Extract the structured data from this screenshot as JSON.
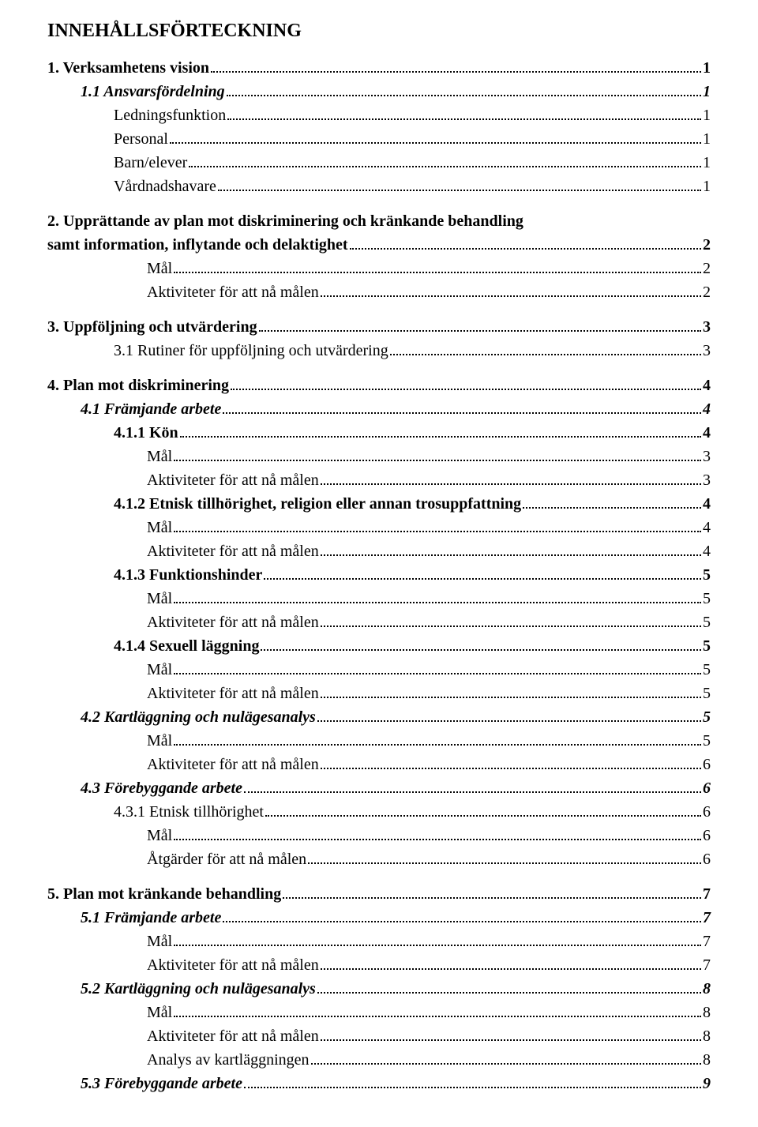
{
  "title": "INNEHÅLLSFÖRTECKNING",
  "entries": [
    {
      "label": "1. Verksamhetens vision",
      "page": "1",
      "cls": "l1 sp-before"
    },
    {
      "label": "1.1 Ansvarsfördelning",
      "page": "1",
      "cls": "l2"
    },
    {
      "label": "Ledningsfunktion",
      "page": "1",
      "cls": "l3"
    },
    {
      "label": "Personal",
      "page": "1",
      "cls": "l3"
    },
    {
      "label": "Barn/elever",
      "page": "1",
      "cls": "l3"
    },
    {
      "label": "Vårdnadshavare",
      "page": "1",
      "cls": "l3"
    },
    {
      "label": "2. Upprättande av plan mot diskriminering och kränkande behandling",
      "page": "",
      "cls": "l1 sp-before",
      "nobreak_next": true
    },
    {
      "label": "samt information, inflytande och delaktighet",
      "page": "2",
      "cls": "l1",
      "continuation": true
    },
    {
      "label": "Mål",
      "page": "2",
      "cls": "l4"
    },
    {
      "label": "Aktiviteter för att nå målen",
      "page": "2",
      "cls": "l4"
    },
    {
      "label": "3. Uppföljning och utvärdering",
      "page": "3",
      "cls": "l1 sp-before"
    },
    {
      "label": "3.1 Rutiner för uppföljning och utvärdering",
      "page": "3",
      "cls": "l3"
    },
    {
      "label": "4. Plan mot diskriminering",
      "page": "4",
      "cls": "l1 sp-before"
    },
    {
      "label": "4.1 Främjande arbete",
      "page": "4",
      "cls": "l2"
    },
    {
      "label": "4.1.1 Kön",
      "page": "4",
      "cls": "l3b"
    },
    {
      "label": "Mål",
      "page": "3",
      "cls": "l4"
    },
    {
      "label": "Aktiviteter för att nå målen",
      "page": "3",
      "cls": "l4"
    },
    {
      "label": "4.1.2 Etnisk tillhörighet, religion eller annan trosuppfattning",
      "page": "4",
      "cls": "l3b"
    },
    {
      "label": "Mål",
      "page": "4",
      "cls": "l4"
    },
    {
      "label": "Aktiviteter för att nå målen",
      "page": "4",
      "cls": "l4"
    },
    {
      "label": "4.1.3 Funktionshinder",
      "page": "5",
      "cls": "l3b"
    },
    {
      "label": "Mål",
      "page": "5",
      "cls": "l4"
    },
    {
      "label": "Aktiviteter för att nå målen",
      "page": "5",
      "cls": "l4"
    },
    {
      "label": "4.1.4 Sexuell läggning",
      "page": "5",
      "cls": "l3b"
    },
    {
      "label": "Mål",
      "page": "5",
      "cls": "l4"
    },
    {
      "label": "Aktiviteter för att nå målen",
      "page": "5",
      "cls": "l4"
    },
    {
      "label": "4.2 Kartläggning och nulägesanalys",
      "page": "5",
      "cls": "l2"
    },
    {
      "label": "Mål",
      "page": "5",
      "cls": "l4"
    },
    {
      "label": "Aktiviteter för att nå målen",
      "page": "6",
      "cls": "l4"
    },
    {
      "label": "4.3 Förebyggande arbete",
      "page": "6",
      "cls": "l2"
    },
    {
      "label": "4.3.1 Etnisk tillhörighet",
      "page": "6",
      "cls": "l3"
    },
    {
      "label": "Mål",
      "page": "6",
      "cls": "l4"
    },
    {
      "label": "Åtgärder för att nå målen",
      "page": "6",
      "cls": "l4"
    },
    {
      "label": "5. Plan mot kränkande behandling",
      "page": "7",
      "cls": "l1 sp-before"
    },
    {
      "label": "5.1 Främjande arbete",
      "page": "7",
      "cls": "l2"
    },
    {
      "label": "Mål",
      "page": "7",
      "cls": "l4"
    },
    {
      "label": "Aktiviteter för att nå målen",
      "page": "7",
      "cls": "l4"
    },
    {
      "label": "5.2 Kartläggning och nulägesanalys",
      "page": "8",
      "cls": "l2"
    },
    {
      "label": "Mål",
      "page": "8",
      "cls": "l4"
    },
    {
      "label": "Aktiviteter för att nå målen",
      "page": "8",
      "cls": "l4"
    },
    {
      "label": "Analys av kartläggningen",
      "page": "8",
      "cls": "l4"
    },
    {
      "label": "5.3 Förebyggande arbete",
      "page": "9",
      "cls": "l2"
    }
  ]
}
